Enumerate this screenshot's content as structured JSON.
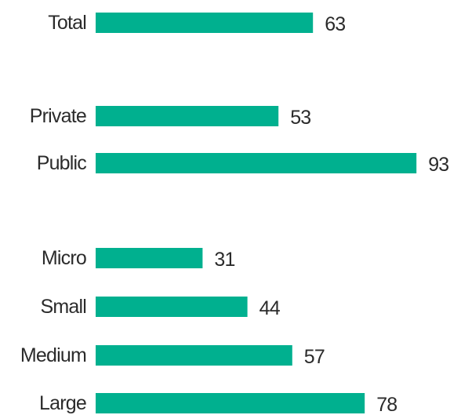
{
  "cropped_heading": "",
  "chart_data": {
    "type": "bar",
    "orientation": "horizontal",
    "bar_color": "#00b08f",
    "grid": false,
    "categories": [
      "Total",
      "Private",
      "Public",
      "Micro",
      "Small",
      "Medium",
      "Large"
    ],
    "values": [
      63,
      53,
      93,
      31,
      44,
      57,
      78
    ],
    "data_labels": [
      "63",
      "53",
      "93",
      "31",
      "44",
      "57",
      "78"
    ]
  }
}
